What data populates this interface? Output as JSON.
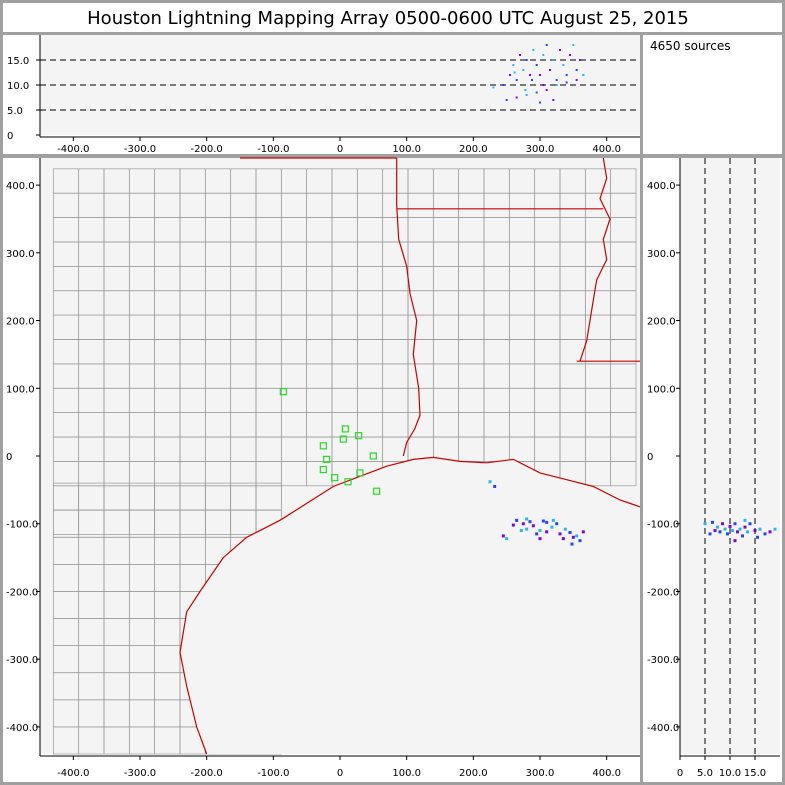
{
  "title": "Houston Lightning Mapping Array   0500-0600 UTC  August 25, 2015",
  "source_count_label": "4650 sources",
  "colors": {
    "panel_bg": "#f4f4f4",
    "separator": "#a0a0a0",
    "county": "#999999",
    "state_coast": "#cc0000",
    "station": "#22dd22",
    "dense": "#22bbee",
    "mid": "#2244ff",
    "sparse": "#8800dd"
  },
  "chart_data": [
    {
      "type": "scatter",
      "panel": "altitude-vs-east-west",
      "xlim": [
        -450,
        450
      ],
      "ylim": [
        0,
        20
      ],
      "x_ticks": [
        "-400.0",
        "-300.0",
        "-200.0",
        "-100.0",
        "0",
        "100.0",
        "200.0",
        "300.0",
        "400.0"
      ],
      "y_ticks": [
        "0",
        "5.0",
        "10.0",
        "15.0"
      ],
      "y_tick_values": [
        0,
        5,
        10,
        15
      ],
      "dashed_levels": [
        5,
        10,
        15
      ],
      "points": [
        [
          230,
          9.5
        ],
        [
          245,
          10
        ],
        [
          255,
          12
        ],
        [
          260,
          14
        ],
        [
          265,
          11
        ],
        [
          270,
          16
        ],
        [
          275,
          13
        ],
        [
          280,
          15
        ],
        [
          285,
          12
        ],
        [
          290,
          17
        ],
        [
          295,
          14
        ],
        [
          300,
          12
        ],
        [
          305,
          16
        ],
        [
          310,
          18
        ],
        [
          315,
          13
        ],
        [
          320,
          15
        ],
        [
          325,
          11
        ],
        [
          330,
          17
        ],
        [
          335,
          14
        ],
        [
          340,
          12
        ],
        [
          345,
          16
        ],
        [
          350,
          18
        ],
        [
          355,
          13
        ],
        [
          360,
          15
        ],
        [
          365,
          12
        ],
        [
          250,
          7
        ],
        [
          265,
          7.5
        ],
        [
          280,
          8
        ],
        [
          295,
          8.5
        ],
        [
          310,
          9
        ],
        [
          325,
          10
        ],
        [
          340,
          10.5
        ],
        [
          355,
          11
        ],
        [
          365,
          12
        ],
        [
          300,
          6.5
        ],
        [
          320,
          7
        ],
        [
          278,
          9
        ],
        [
          288,
          11
        ],
        [
          305,
          10
        ],
        [
          262,
          12.5
        ]
      ]
    },
    {
      "type": "scatter",
      "panel": "plan-view",
      "xlim": [
        -450,
        450
      ],
      "ylim": [
        -440,
        440
      ],
      "x_ticks": [
        "-400.0",
        "-300.0",
        "-200.0",
        "-100.0",
        "0",
        "100.0",
        "200.0",
        "300.0",
        "400.0"
      ],
      "y_ticks": [
        "400.0",
        "300.0",
        "200.0",
        "100.0",
        "0",
        "-100.0",
        "-200.0",
        "-300.0",
        "-400.0"
      ],
      "stations": [
        [
          -85,
          95
        ],
        [
          -25,
          15
        ],
        [
          -20,
          -5
        ],
        [
          -25,
          -20
        ],
        [
          -8,
          -32
        ],
        [
          5,
          25
        ],
        [
          8,
          40
        ],
        [
          12,
          -38
        ],
        [
          28,
          30
        ],
        [
          30,
          -25
        ],
        [
          50,
          0
        ],
        [
          55,
          -52
        ]
      ],
      "points": [
        [
          225,
          -38
        ],
        [
          232,
          -45
        ],
        [
          245,
          -118
        ],
        [
          250,
          -122
        ],
        [
          265,
          -95
        ],
        [
          275,
          -100
        ],
        [
          280,
          -108
        ],
        [
          285,
          -97
        ],
        [
          290,
          -103
        ],
        [
          300,
          -110
        ],
        [
          305,
          -96
        ],
        [
          310,
          -112
        ],
        [
          318,
          -105
        ],
        [
          325,
          -100
        ],
        [
          330,
          -115
        ],
        [
          338,
          -108
        ],
        [
          345,
          -113
        ],
        [
          350,
          -120
        ],
        [
          355,
          -118
        ],
        [
          360,
          -125
        ],
        [
          365,
          -112
        ],
        [
          272,
          -110
        ],
        [
          295,
          -115
        ],
        [
          260,
          -102
        ],
        [
          320,
          -95
        ],
        [
          348,
          -130
        ],
        [
          335,
          -122
        ],
        [
          280,
          -93
        ],
        [
          310,
          -98
        ],
        [
          300,
          -122
        ]
      ]
    },
    {
      "type": "scatter",
      "panel": "north-south-vs-altitude",
      "xlim": [
        0,
        20
      ],
      "ylim": [
        -440,
        440
      ],
      "x_ticks": [
        "0",
        "5.0",
        "10.0",
        "15.0"
      ],
      "x_tick_values": [
        0,
        5,
        10,
        15
      ],
      "y_ticks": [
        "400.0",
        "300.0",
        "200.0",
        "100.0",
        "0",
        "-100.0",
        "-200.0",
        "-300.0",
        "-400.0"
      ],
      "dashed_levels": [
        5,
        10,
        15
      ],
      "points": [
        [
          5,
          -100
        ],
        [
          6.5,
          -98
        ],
        [
          7,
          -110
        ],
        [
          7.5,
          -105
        ],
        [
          8,
          -112
        ],
        [
          8.5,
          -100
        ],
        [
          9,
          -108
        ],
        [
          9.5,
          -115
        ],
        [
          10,
          -104
        ],
        [
          10.5,
          -110
        ],
        [
          11,
          -100
        ],
        [
          11.5,
          -112
        ],
        [
          12,
          -108
        ],
        [
          12.5,
          -118
        ],
        [
          13,
          -105
        ],
        [
          13.5,
          -112
        ],
        [
          14,
          -100
        ],
        [
          15,
          -110
        ],
        [
          16,
          -108
        ],
        [
          17,
          -115
        ],
        [
          18,
          -112
        ],
        [
          19,
          -108
        ],
        [
          6,
          -115
        ],
        [
          11,
          -125
        ],
        [
          13,
          -95
        ],
        [
          15.5,
          -120
        ]
      ]
    }
  ]
}
